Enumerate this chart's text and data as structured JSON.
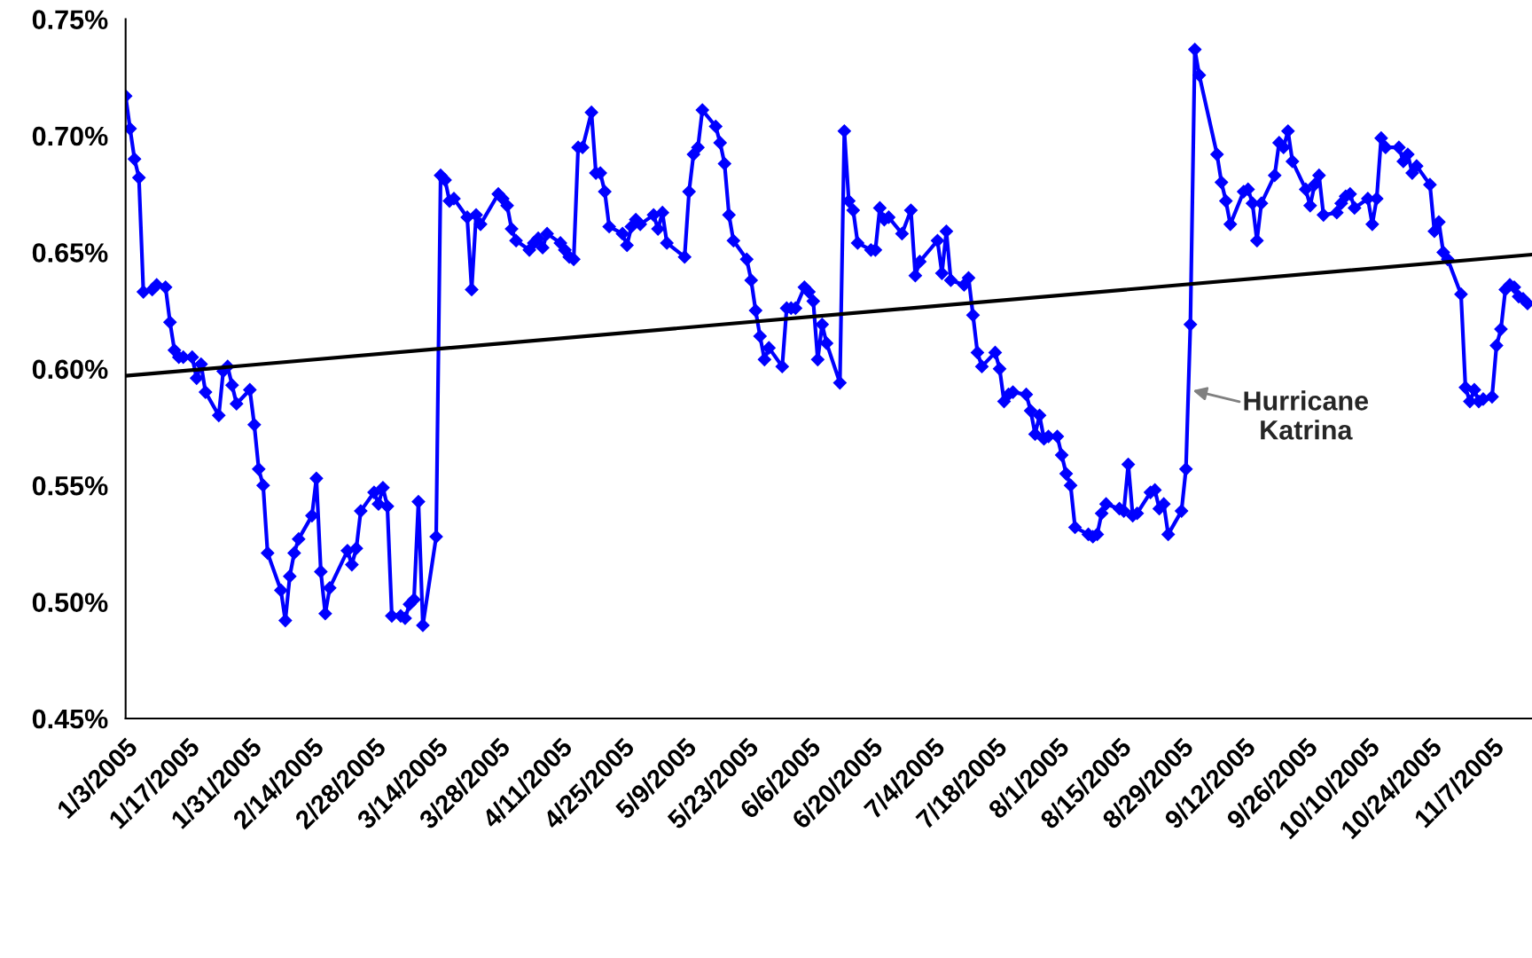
{
  "chart_data": {
    "type": "line",
    "xlim": [
      "2005-01-03",
      "2005-11-16"
    ],
    "ylim": [
      0.45,
      0.75
    ],
    "yticks": [
      {
        "value": 0.45,
        "label": "0.45%"
      },
      {
        "value": 0.5,
        "label": "0.50%"
      },
      {
        "value": 0.55,
        "label": "0.55%"
      },
      {
        "value": 0.6,
        "label": "0.60%"
      },
      {
        "value": 0.65,
        "label": "0.65%"
      },
      {
        "value": 0.7,
        "label": "0.70%"
      },
      {
        "value": 0.75,
        "label": "0.75%"
      }
    ],
    "xticks": [
      {
        "value": "2005-01-03",
        "label": "1/3/2005"
      },
      {
        "value": "2005-01-17",
        "label": "1/17/2005"
      },
      {
        "value": "2005-01-31",
        "label": "1/31/2005"
      },
      {
        "value": "2005-02-14",
        "label": "2/14/2005"
      },
      {
        "value": "2005-02-28",
        "label": "2/28/2005"
      },
      {
        "value": "2005-03-14",
        "label": "3/14/2005"
      },
      {
        "value": "2005-03-28",
        "label": "3/28/2005"
      },
      {
        "value": "2005-04-11",
        "label": "4/11/2005"
      },
      {
        "value": "2005-04-25",
        "label": "4/25/2005"
      },
      {
        "value": "2005-05-09",
        "label": "5/9/2005"
      },
      {
        "value": "2005-05-23",
        "label": "5/23/2005"
      },
      {
        "value": "2005-06-06",
        "label": "6/6/2005"
      },
      {
        "value": "2005-06-20",
        "label": "6/20/2005"
      },
      {
        "value": "2005-07-04",
        "label": "7/4/2005"
      },
      {
        "value": "2005-07-18",
        "label": "7/18/2005"
      },
      {
        "value": "2005-08-01",
        "label": "8/1/2005"
      },
      {
        "value": "2005-08-15",
        "label": "8/15/2005"
      },
      {
        "value": "2005-08-29",
        "label": "8/29/2005"
      },
      {
        "value": "2005-09-12",
        "label": "9/12/2005"
      },
      {
        "value": "2005-09-26",
        "label": "9/26/2005"
      },
      {
        "value": "2005-10-10",
        "label": "10/10/2005"
      },
      {
        "value": "2005-10-24",
        "label": "10/24/2005"
      },
      {
        "value": "2005-11-07",
        "label": "11/7/2005"
      }
    ],
    "grid": false,
    "series": [
      {
        "color": "#0000ff",
        "marker": "diamond",
        "line_style": "solid",
        "x": [
          "2005-01-03",
          "2005-01-04",
          "2005-01-05",
          "2005-01-06",
          "2005-01-07",
          "2005-01-09",
          "2005-01-10",
          "2005-01-12",
          "2005-01-13",
          "2005-01-14",
          "2005-01-15",
          "2005-01-16",
          "2005-01-18",
          "2005-01-19",
          "2005-01-20",
          "2005-01-21",
          "2005-01-24",
          "2005-01-25",
          "2005-01-26",
          "2005-01-27",
          "2005-01-28",
          "2005-01-31",
          "2005-02-01",
          "2005-02-02",
          "2005-02-03",
          "2005-02-04",
          "2005-02-07",
          "2005-02-08",
          "2005-02-09",
          "2005-02-10",
          "2005-02-11",
          "2005-02-14",
          "2005-02-15",
          "2005-02-16",
          "2005-02-17",
          "2005-02-18",
          "2005-02-22",
          "2005-02-23",
          "2005-02-24",
          "2005-02-25",
          "2005-02-28",
          "2005-03-01",
          "2005-03-02",
          "2005-03-03",
          "2005-03-04",
          "2005-03-06",
          "2005-03-07",
          "2005-03-08",
          "2005-03-09",
          "2005-03-10",
          "2005-03-11",
          "2005-03-14",
          "2005-03-15",
          "2005-03-16",
          "2005-03-17",
          "2005-03-18",
          "2005-03-21",
          "2005-03-22",
          "2005-03-23",
          "2005-03-24",
          "2005-03-28",
          "2005-03-29",
          "2005-03-30",
          "2005-03-31",
          "2005-04-01",
          "2005-04-04",
          "2005-04-05",
          "2005-04-06",
          "2005-04-07",
          "2005-04-08",
          "2005-04-11",
          "2005-04-12",
          "2005-04-13",
          "2005-04-14",
          "2005-04-15",
          "2005-04-16",
          "2005-04-18",
          "2005-04-19",
          "2005-04-20",
          "2005-04-21",
          "2005-04-22",
          "2005-04-25",
          "2005-04-26",
          "2005-04-27",
          "2005-04-28",
          "2005-04-29",
          "2005-05-02",
          "2005-05-03",
          "2005-05-04",
          "2005-05-05",
          "2005-05-09",
          "2005-05-10",
          "2005-05-11",
          "2005-05-12",
          "2005-05-13",
          "2005-05-16",
          "2005-05-17",
          "2005-05-18",
          "2005-05-19",
          "2005-05-20",
          "2005-05-23",
          "2005-05-24",
          "2005-05-25",
          "2005-05-26",
          "2005-05-27",
          "2005-05-28",
          "2005-05-31",
          "2005-06-01",
          "2005-06-02",
          "2005-06-03",
          "2005-06-05",
          "2005-06-06",
          "2005-06-07",
          "2005-06-08",
          "2005-06-09",
          "2005-06-10",
          "2005-06-13",
          "2005-06-14",
          "2005-06-15",
          "2005-06-16",
          "2005-06-17",
          "2005-06-20",
          "2005-06-21",
          "2005-06-22",
          "2005-06-23",
          "2005-06-24",
          "2005-06-27",
          "2005-06-29",
          "2005-06-30",
          "2005-07-01",
          "2005-07-05",
          "2005-07-06",
          "2005-07-07",
          "2005-07-08",
          "2005-07-11",
          "2005-07-12",
          "2005-07-13",
          "2005-07-14",
          "2005-07-15",
          "2005-07-18",
          "2005-07-19",
          "2005-07-20",
          "2005-07-21",
          "2005-07-22",
          "2005-07-25",
          "2005-07-26",
          "2005-07-27",
          "2005-07-28",
          "2005-07-29",
          "2005-07-30",
          "2005-08-01",
          "2005-08-02",
          "2005-08-03",
          "2005-08-04",
          "2005-08-05",
          "2005-08-08",
          "2005-08-09",
          "2005-08-10",
          "2005-08-11",
          "2005-08-12",
          "2005-08-15",
          "2005-08-16",
          "2005-08-17",
          "2005-08-18",
          "2005-08-19",
          "2005-08-22",
          "2005-08-23",
          "2005-08-24",
          "2005-08-25",
          "2005-08-26",
          "2005-08-29",
          "2005-08-30",
          "2005-08-31",
          "2005-09-01",
          "2005-09-02",
          "2005-09-06",
          "2005-09-07",
          "2005-09-08",
          "2005-09-09",
          "2005-09-12",
          "2005-09-13",
          "2005-09-14",
          "2005-09-15",
          "2005-09-16",
          "2005-09-19",
          "2005-09-20",
          "2005-09-21",
          "2005-09-22",
          "2005-09-23",
          "2005-09-26",
          "2005-09-27",
          "2005-09-28",
          "2005-09-29",
          "2005-09-30",
          "2005-10-03",
          "2005-10-04",
          "2005-10-05",
          "2005-10-06",
          "2005-10-07",
          "2005-10-10",
          "2005-10-11",
          "2005-10-12",
          "2005-10-13",
          "2005-10-14",
          "2005-10-17",
          "2005-10-18",
          "2005-10-19",
          "2005-10-20",
          "2005-10-21",
          "2005-10-24",
          "2005-10-25",
          "2005-10-26",
          "2005-10-27",
          "2005-10-28",
          "2005-10-31",
          "2005-11-01",
          "2005-11-02",
          "2005-11-03",
          "2005-11-04",
          "2005-11-05",
          "2005-11-07",
          "2005-11-08",
          "2005-11-09",
          "2005-11-10",
          "2005-11-11",
          "2005-11-12",
          "2005-11-13",
          "2005-11-14",
          "2005-11-15"
        ],
        "values": [
          0.717,
          0.703,
          0.69,
          0.682,
          0.633,
          0.634,
          0.636,
          0.635,
          0.62,
          0.608,
          0.605,
          0.605,
          0.605,
          0.596,
          0.602,
          0.59,
          0.58,
          0.599,
          0.601,
          0.593,
          0.585,
          0.591,
          0.576,
          0.557,
          0.55,
          0.521,
          0.505,
          0.492,
          0.511,
          0.521,
          0.527,
          0.537,
          0.553,
          0.513,
          0.495,
          0.506,
          0.522,
          0.516,
          0.523,
          0.539,
          0.547,
          0.542,
          0.549,
          0.541,
          0.494,
          0.494,
          0.493,
          0.499,
          0.501,
          0.543,
          0.49,
          0.528,
          0.683,
          0.681,
          0.672,
          0.673,
          0.665,
          0.634,
          0.666,
          0.662,
          0.675,
          0.673,
          0.67,
          0.66,
          0.655,
          0.651,
          0.654,
          0.656,
          0.652,
          0.658,
          0.654,
          0.651,
          0.648,
          0.647,
          0.695,
          0.695,
          0.71,
          0.684,
          0.684,
          0.676,
          0.661,
          0.658,
          0.653,
          0.661,
          0.664,
          0.662,
          0.666,
          0.66,
          0.667,
          0.654,
          0.648,
          0.676,
          0.692,
          0.695,
          0.711,
          0.704,
          0.697,
          0.688,
          0.666,
          0.655,
          0.647,
          0.638,
          0.625,
          0.614,
          0.604,
          0.609,
          0.601,
          0.626,
          0.626,
          0.626,
          0.635,
          0.633,
          0.629,
          0.604,
          0.619,
          0.611,
          0.594,
          0.702,
          0.672,
          0.668,
          0.654,
          0.651,
          0.651,
          0.669,
          0.664,
          0.665,
          0.658,
          0.668,
          0.64,
          0.646,
          0.655,
          0.641,
          0.659,
          0.638,
          0.636,
          0.639,
          0.623,
          0.607,
          0.601,
          0.607,
          0.6,
          0.586,
          0.589,
          0.59,
          0.589,
          0.582,
          0.572,
          0.58,
          0.57,
          0.571,
          0.571,
          0.563,
          0.555,
          0.55,
          0.532,
          0.529,
          0.528,
          0.529,
          0.538,
          0.542,
          0.54,
          0.539,
          0.559,
          0.537,
          0.538,
          0.547,
          0.548,
          0.54,
          0.542,
          0.529,
          0.539,
          0.557,
          0.619,
          0.737,
          0.726,
          0.692,
          0.68,
          0.672,
          0.662,
          0.676,
          0.677,
          0.671,
          0.655,
          0.671,
          0.683,
          0.697,
          0.695,
          0.702,
          0.689,
          0.677,
          0.67,
          0.679,
          0.683,
          0.666,
          0.667,
          0.671,
          0.674,
          0.675,
          0.669,
          0.673,
          0.662,
          0.673,
          0.699,
          0.695,
          0.695,
          0.689,
          0.692,
          0.684,
          0.687,
          0.679,
          0.659,
          0.663,
          0.65,
          0.647,
          0.632,
          0.592,
          0.586,
          0.591,
          0.586,
          0.587,
          0.588,
          0.61,
          0.617,
          0.634,
          0.636,
          0.635,
          0.631,
          0.63,
          0.628
        ]
      },
      {
        "color": "#000000",
        "marker": "none",
        "line_style": "solid",
        "x": [
          "2005-01-03",
          "2005-11-16"
        ],
        "values": [
          0.597,
          0.649
        ]
      }
    ],
    "annotations": [
      {
        "text": "Hurricane\nKatrina",
        "x": "2005-08-31",
        "y": 0.591
      }
    ]
  }
}
